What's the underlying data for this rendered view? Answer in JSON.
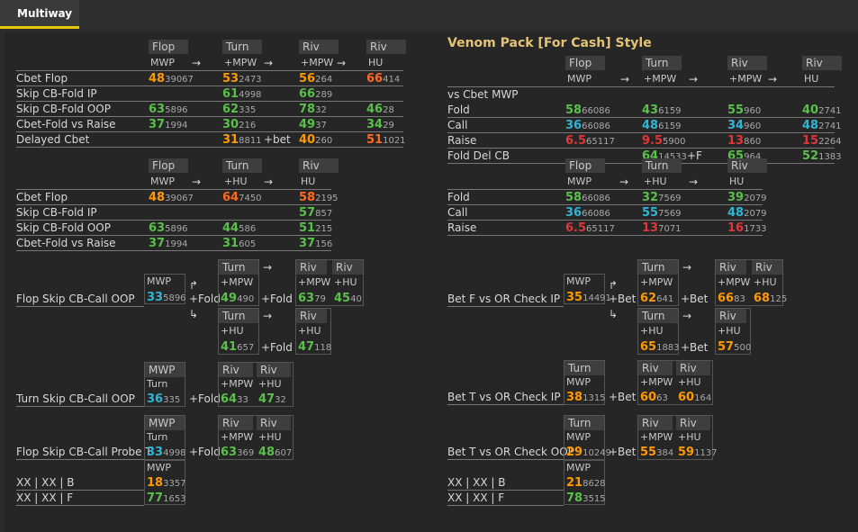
{
  "tab": {
    "label": "Multiway"
  },
  "right_title": "Venom Pack [For Cash] Style",
  "arrow": "→",
  "arrow_up": "↱",
  "arrow_down": "↳",
  "colors": {
    "orange": "#ff9900",
    "green": "#59c04a",
    "cyan": "#2fb6d6",
    "red": "#e0363a",
    "deep_orange": "#ff6a1e",
    "title": "#e5c375",
    "accent": "#e7c700"
  },
  "L1": {
    "h": [
      "Flop",
      "Turn",
      "Riv",
      "Riv"
    ],
    "s": [
      "MWP",
      "+MPW",
      "+MPW",
      "HU"
    ],
    "rows": [
      {
        "label": "Cbet Flop",
        "cells": [
          {
            "v": "48",
            "n": "39067",
            "c": "or"
          },
          {
            "v": "53",
            "n": "2473",
            "c": "or"
          },
          {
            "v": "56",
            "n": "264",
            "c": "or"
          },
          {
            "v": "66",
            "n": "414",
            "c": "orr"
          }
        ]
      },
      {
        "label": "Skip CB-Fold IP",
        "cells": [
          null,
          {
            "v": "61",
            "n": "4998",
            "c": "gr"
          },
          {
            "v": "66",
            "n": "289",
            "c": "gr"
          },
          null
        ]
      },
      {
        "label": "Skip CB-Fold OOP",
        "cells": [
          {
            "v": "63",
            "n": "5896",
            "c": "gr"
          },
          {
            "v": "62",
            "n": "335",
            "c": "gr"
          },
          {
            "v": "78",
            "n": "32",
            "c": "gr"
          },
          {
            "v": "46",
            "n": "28",
            "c": "gr"
          }
        ]
      },
      {
        "label": "Cbet-Fold vs Raise",
        "cells": [
          {
            "v": "37",
            "n": "1994",
            "c": "gr"
          },
          {
            "v": "30",
            "n": "216",
            "c": "gr"
          },
          {
            "v": "49",
            "n": "37",
            "c": "gr"
          },
          {
            "v": "34",
            "n": "29",
            "c": "gr"
          }
        ]
      },
      {
        "label": "Delayed Cbet",
        "cells": [
          null,
          {
            "v": "31",
            "n": "8811",
            "c": "or"
          },
          {
            "v": "40",
            "n": "260",
            "c": "or"
          },
          {
            "v": "51",
            "n": "1021",
            "c": "orr"
          }
        ],
        "mid": "+bet"
      }
    ]
  },
  "L2": {
    "h": [
      "Flop",
      "Turn",
      "Riv"
    ],
    "s": [
      "MWP",
      "+HU",
      "HU"
    ],
    "rows": [
      {
        "label": "Cbet Flop",
        "cells": [
          {
            "v": "48",
            "n": "39067",
            "c": "or"
          },
          {
            "v": "64",
            "n": "7450",
            "c": "orr"
          },
          {
            "v": "58",
            "n": "2195",
            "c": "orr"
          }
        ]
      },
      {
        "label": "Skip CB-Fold IP",
        "cells": [
          null,
          null,
          {
            "v": "57",
            "n": "857",
            "c": "gr"
          }
        ]
      },
      {
        "label": "Skip CB-Fold OOP",
        "cells": [
          {
            "v": "63",
            "n": "5896",
            "c": "gr"
          },
          {
            "v": "44",
            "n": "586",
            "c": "gr"
          },
          {
            "v": "51",
            "n": "215",
            "c": "gr"
          }
        ]
      },
      {
        "label": "Cbet-Fold vs Raise",
        "cells": [
          {
            "v": "37",
            "n": "1994",
            "c": "gr"
          },
          {
            "v": "31",
            "n": "605",
            "c": "gr"
          },
          {
            "v": "37",
            "n": "156",
            "c": "gr"
          }
        ]
      }
    ]
  },
  "R1": {
    "first": "vs Cbet MWP",
    "h": [
      "Flop",
      "Turn",
      "Riv",
      "Riv"
    ],
    "s": [
      "MWP",
      "+MPW",
      "+MPW",
      "HU"
    ],
    "rows": [
      {
        "label": "Fold",
        "cells": [
          {
            "v": "58",
            "n": "66086",
            "c": "gr"
          },
          {
            "v": "43",
            "n": "6159",
            "c": "gr"
          },
          {
            "v": "55",
            "n": "960",
            "c": "gr"
          },
          {
            "v": "40",
            "n": "2741",
            "c": "gr"
          }
        ]
      },
      {
        "label": "Call",
        "cells": [
          {
            "v": "36",
            "n": "66086",
            "c": "cy"
          },
          {
            "v": "48",
            "n": "6159",
            "c": "cy"
          },
          {
            "v": "34",
            "n": "960",
            "c": "cy"
          },
          {
            "v": "48",
            "n": "2741",
            "c": "cy"
          }
        ]
      },
      {
        "label": "Raise",
        "cells": [
          {
            "v": "6.5",
            "n": "65117",
            "c": "rd"
          },
          {
            "v": "9.5",
            "n": "5900",
            "c": "rd"
          },
          {
            "v": "13",
            "n": "860",
            "c": "rd"
          },
          {
            "v": "15",
            "n": "2264",
            "c": "rd"
          }
        ]
      },
      {
        "label": "Fold Del CB",
        "cells": [
          null,
          {
            "v": "64",
            "n": "14533",
            "c": "gr"
          },
          {
            "v": "65",
            "n": "964",
            "c": "gr"
          },
          {
            "v": "52",
            "n": "1383",
            "c": "gr"
          }
        ],
        "mid": "+F"
      }
    ]
  },
  "R2": {
    "h": [
      "Flop",
      "Turn",
      "Riv"
    ],
    "s": [
      "MWP",
      "+HU",
      "HU"
    ],
    "rows": [
      {
        "label": "Fold",
        "cells": [
          {
            "v": "58",
            "n": "66086",
            "c": "gr"
          },
          {
            "v": "32",
            "n": "7569",
            "c": "gr"
          },
          {
            "v": "39",
            "n": "2079",
            "c": "gr"
          }
        ]
      },
      {
        "label": "Call",
        "cells": [
          {
            "v": "36",
            "n": "66086",
            "c": "cy"
          },
          {
            "v": "55",
            "n": "7569",
            "c": "cy"
          },
          {
            "v": "48",
            "n": "2079",
            "c": "cy"
          }
        ]
      },
      {
        "label": "Raise",
        "cells": [
          {
            "v": "6.5",
            "n": "65117",
            "c": "rd"
          },
          {
            "v": "13",
            "n": "7071",
            "c": "rd"
          },
          {
            "v": "16",
            "n": "1733",
            "c": "rd"
          }
        ]
      }
    ]
  },
  "trees": {
    "flop_skip_call_oop": {
      "label": "Flop Skip CB-Call OOP",
      "mwp": {
        "h": "MWP",
        "v": "33",
        "n": "5896",
        "c": "cy"
      },
      "plus": "+Fold",
      "top": {
        "h": "Turn",
        "s": "+MPW",
        "v": "49",
        "n": "490",
        "c": "gr",
        "mid": "+Fold",
        "r": [
          {
            "h": "Riv",
            "s": "+MPW",
            "v": "63",
            "n": "79",
            "c": "gr"
          },
          {
            "h": "Riv",
            "s": "+HU",
            "v": "45",
            "n": "40",
            "c": "gr"
          }
        ]
      },
      "bot": {
        "h": "Turn",
        "s": "+HU",
        "v": "41",
        "n": "657",
        "c": "gr",
        "mid": "+Fold",
        "r": [
          {
            "h": "Riv",
            "s": "+HU",
            "v": "47",
            "n": "118",
            "c": "gr"
          }
        ]
      }
    },
    "bet_f_vs_or_check_ip": {
      "label": "Bet F vs OR Check IP",
      "mwp": {
        "h": "MWP",
        "v": "35",
        "n": "14491",
        "c": "or"
      },
      "plus": "+Bet",
      "top": {
        "h": "Turn",
        "s": "+MPW",
        "v": "62",
        "n": "641",
        "c": "or",
        "mid": "+Bet",
        "r": [
          {
            "h": "Riv",
            "s": "+MPW",
            "v": "66",
            "n": "83",
            "c": "or"
          },
          {
            "h": "Riv",
            "s": "+HU",
            "v": "68",
            "n": "125",
            "c": "or"
          }
        ]
      },
      "bot": {
        "h": "Turn",
        "s": "+HU",
        "v": "65",
        "n": "1883",
        "c": "or",
        "mid": "+Bet",
        "r": [
          {
            "h": "Riv",
            "s": "+HU",
            "v": "57",
            "n": "500",
            "c": "or"
          }
        ]
      }
    },
    "turn_skip_call_oop": {
      "label": "Turn Skip CB-Call OOP",
      "h1": "MWP",
      "h2": "Turn",
      "v": "36",
      "n": "335",
      "c": "cy",
      "plus": "+Fold",
      "r": [
        {
          "h": "Riv",
          "s": "+MPW",
          "v": "64",
          "n": "33",
          "c": "gr"
        },
        {
          "h": "Riv",
          "s": "+HU",
          "v": "47",
          "n": "32",
          "c": "gr"
        }
      ]
    },
    "bet_t_vs_or_check_ip": {
      "label": "Bet T vs OR Check IP",
      "h1": "Turn",
      "h2": "MWP",
      "v": "38",
      "n": "1315",
      "c": "or",
      "plus": "+Bet",
      "r": [
        {
          "h": "Riv",
          "s": "+MPW",
          "v": "60",
          "n": "63",
          "c": "or"
        },
        {
          "h": "Riv",
          "s": "+HU",
          "v": "60",
          "n": "164",
          "c": "or"
        }
      ]
    },
    "flop_skip_call_probe": {
      "label": "Flop Skip CB-Call Probe T",
      "h1": "MWP",
      "h2": "Turn",
      "v": "33",
      "n": "4998",
      "c": "cy",
      "plus": "+Fold",
      "r": [
        {
          "h": "Riv",
          "s": "+MPW",
          "v": "63",
          "n": "369",
          "c": "gr"
        },
        {
          "h": "Riv",
          "s": "+HU",
          "v": "48",
          "n": "607",
          "c": "gr"
        }
      ]
    },
    "bet_t_vs_or_check_oop": {
      "label": "Bet T vs OR Check OOP",
      "h1": "Turn",
      "h2": "MWP",
      "v": "29",
      "n": "10249",
      "c": "or",
      "plus": "+Bet",
      "r": [
        {
          "h": "Riv",
          "s": "+MPW",
          "v": "55",
          "n": "384",
          "c": "or"
        },
        {
          "h": "Riv",
          "s": "+HU",
          "v": "59",
          "n": "1137",
          "c": "or"
        }
      ]
    }
  },
  "xx": {
    "left": [
      {
        "label": "XX | XX | B",
        "h": "MWP",
        "v": "18",
        "n": "3357",
        "c": "or"
      },
      {
        "label": "XX | XX | F",
        "v": "77",
        "n": "1653",
        "c": "gr"
      }
    ],
    "right": [
      {
        "label": "XX | XX | B",
        "h": "MWP",
        "v": "21",
        "n": "8628",
        "c": "or"
      },
      {
        "label": "XX | XX | F",
        "v": "78",
        "n": "3515",
        "c": "gr"
      }
    ]
  }
}
